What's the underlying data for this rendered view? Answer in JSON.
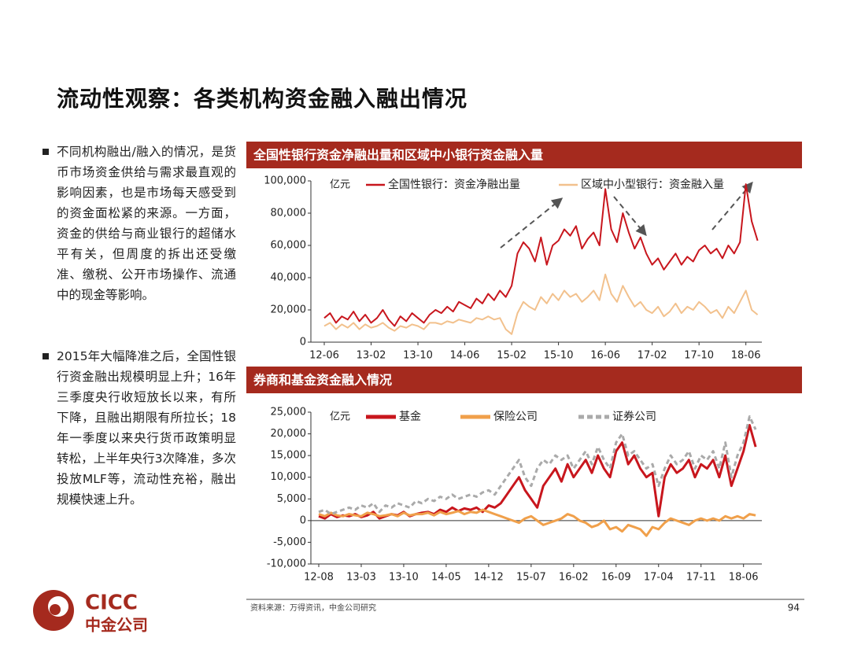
{
  "title": "流动性观察：各类机构资金融入融出情况",
  "bullets": [
    "不同机构融出/融入的情况，是货币市场资金供给与需求最直观的影响因素，也是市场每天感受到的资金面松紧的来源。一方面，资金的供给与商业银行的超储水平有关，但周度的拆出还受缴准、缴税、公开市场操作、流通中的现金等影响。",
    "2015年大幅降准之后，全国性银行资金融出规模明显上升；16年三季度央行收短放长以来，有所下降，且融出期限有所拉长；18年一季度以来央行货币政策明显转松，上半年央行3次降准，多次投放MLF等，流动性充裕，融出规模快速上升。"
  ],
  "chart_data": [
    {
      "type": "line",
      "title": "全国性银行资金净融出量和区域中小银行资金融入量",
      "y_unit": "亿元",
      "categories": [
        "12-06",
        null,
        null,
        null,
        null,
        null,
        null,
        null,
        "13-02",
        null,
        null,
        null,
        null,
        null,
        null,
        null,
        "13-10",
        null,
        null,
        null,
        null,
        null,
        null,
        null,
        "14-06",
        null,
        null,
        null,
        null,
        null,
        null,
        null,
        "15-02",
        null,
        null,
        null,
        null,
        null,
        null,
        null,
        "15-10",
        null,
        null,
        null,
        null,
        null,
        null,
        null,
        "16-06",
        null,
        null,
        null,
        null,
        null,
        null,
        null,
        "17-02",
        null,
        null,
        null,
        null,
        null,
        null,
        null,
        "17-10",
        null,
        null,
        null,
        null,
        null,
        null,
        null,
        "18-06",
        null,
        null
      ],
      "series": [
        {
          "name": "全国性银行：资金净融出量",
          "color": "#c8161d",
          "line_style": "solid",
          "values": [
            15000,
            18000,
            12000,
            16000,
            14000,
            19000,
            13000,
            17000,
            12000,
            15000,
            20000,
            14000,
            10000,
            16000,
            13000,
            18000,
            15000,
            12000,
            17000,
            20000,
            18000,
            22000,
            19000,
            25000,
            23000,
            21000,
            27000,
            24000,
            30000,
            26000,
            32000,
            28000,
            35000,
            55000,
            62000,
            58000,
            50000,
            65000,
            48000,
            60000,
            63000,
            70000,
            66000,
            72000,
            58000,
            64000,
            68000,
            60000,
            95000,
            70000,
            62000,
            80000,
            68000,
            58000,
            65000,
            55000,
            48000,
            52000,
            45000,
            50000,
            55000,
            48000,
            53000,
            50000,
            57000,
            60000,
            55000,
            58000,
            52000,
            60000,
            55000,
            62000,
            98000,
            75000,
            63000
          ]
        },
        {
          "name": "区域中小型银行：资金融入量",
          "color": "#f2c18d",
          "line_style": "solid",
          "values": [
            10000,
            12000,
            8000,
            11000,
            9000,
            12000,
            8000,
            11000,
            9000,
            10000,
            12000,
            9000,
            7000,
            10000,
            9000,
            11000,
            10000,
            8000,
            12000,
            12000,
            11000,
            13000,
            12000,
            14000,
            13000,
            12000,
            15000,
            14000,
            16000,
            14000,
            15000,
            8000,
            5000,
            18000,
            25000,
            22000,
            20000,
            28000,
            24000,
            30000,
            26000,
            32000,
            28000,
            30000,
            25000,
            28000,
            32000,
            26000,
            42000,
            30000,
            25000,
            35000,
            28000,
            22000,
            25000,
            20000,
            18000,
            22000,
            16000,
            19000,
            24000,
            18000,
            22000,
            20000,
            25000,
            22000,
            18000,
            20000,
            15000,
            22000,
            18000,
            25000,
            32000,
            20000,
            17000
          ]
        }
      ],
      "ylim": [
        0,
        100000
      ],
      "yticks": [
        0,
        {
          "value": 20000,
          "label": "20,000"
        },
        {
          "value": 40000,
          "label": "40,000"
        },
        {
          "value": 60000,
          "label": "60,000"
        },
        {
          "value": 80000,
          "label": "80,000"
        },
        {
          "value": 100000,
          "label": "100,000"
        }
      ]
    },
    {
      "type": "line",
      "title": "券商和基金资金融入情况",
      "y_unit": "亿元",
      "categories": [
        "12-08",
        null,
        null,
        null,
        null,
        null,
        null,
        "13-03",
        null,
        null,
        null,
        null,
        null,
        null,
        "13-10",
        null,
        null,
        null,
        null,
        null,
        null,
        "14-05",
        null,
        null,
        null,
        null,
        null,
        null,
        "14-12",
        null,
        null,
        null,
        null,
        null,
        null,
        "15-07",
        null,
        null,
        null,
        null,
        null,
        null,
        "16-02",
        null,
        null,
        null,
        null,
        null,
        null,
        "16-09",
        null,
        null,
        null,
        null,
        null,
        null,
        "17-04",
        null,
        null,
        null,
        null,
        null,
        null,
        "17-11",
        null,
        null,
        null,
        null,
        null,
        null,
        "18-06",
        null,
        null
      ],
      "series": [
        {
          "name": "基金",
          "color": "#c8161d",
          "line_style": "solid",
          "values": [
            1000,
            500,
            1500,
            800,
            1200,
            1000,
            1500,
            800,
            1200,
            2000,
            500,
            1000,
            1500,
            1200,
            2000,
            1000,
            1500,
            1800,
            2000,
            1500,
            2500,
            2000,
            3000,
            2200,
            2800,
            2500,
            3000,
            2000,
            3500,
            3000,
            4000,
            6000,
            8000,
            10000,
            7000,
            5000,
            3000,
            8000,
            10000,
            12000,
            9000,
            13000,
            10000,
            12000,
            14000,
            11000,
            15000,
            12000,
            10000,
            16000,
            18000,
            13000,
            15000,
            12000,
            10000,
            11000,
            1000,
            10000,
            13000,
            11000,
            12000,
            14000,
            10000,
            13000,
            12000,
            14000,
            10000,
            15000,
            8000,
            12000,
            16000,
            22000,
            17000
          ]
        },
        {
          "name": "保险公司",
          "color": "#f0a04b",
          "line_style": "solid",
          "values": [
            1500,
            1000,
            1800,
            1200,
            1000,
            1500,
            1200,
            1000,
            1800,
            1500,
            1000,
            1200,
            1500,
            1000,
            1800,
            1200,
            1500,
            1500,
            1800,
            1200,
            2000,
            1500,
            1800,
            2200,
            1500,
            2000,
            1800,
            2500,
            2000,
            1500,
            1000,
            500,
            0,
            -500,
            500,
            1000,
            0,
            -1000,
            -500,
            0,
            500,
            1500,
            1000,
            0,
            -500,
            -1500,
            -1000,
            0,
            -2000,
            -1500,
            -2500,
            -1000,
            -1500,
            -2000,
            -3500,
            -1500,
            -2000,
            -500,
            500,
            0,
            -500,
            -1000,
            0,
            500,
            0,
            500,
            0,
            1000,
            500,
            1000,
            500,
            1500,
            1200
          ]
        },
        {
          "name": "证券公司",
          "color": "#aaaaaa",
          "line_style": "dashed",
          "values": [
            2000,
            2500,
            1500,
            2000,
            2500,
            3000,
            2500,
            3500,
            3000,
            4000,
            2000,
            3500,
            3000,
            4000,
            3500,
            3000,
            4500,
            4000,
            5000,
            4500,
            5500,
            5000,
            6000,
            5000,
            5500,
            6000,
            5500,
            6500,
            7000,
            6000,
            8000,
            10000,
            12000,
            14000,
            10000,
            8000,
            12000,
            14000,
            13000,
            15000,
            14000,
            15000,
            12000,
            14000,
            16000,
            13000,
            17000,
            14000,
            12000,
            18000,
            20000,
            15000,
            16000,
            14000,
            12000,
            13000,
            8000,
            12000,
            15000,
            13000,
            14000,
            16000,
            12000,
            15000,
            14000,
            16000,
            12000,
            18000,
            10000,
            15000,
            18000,
            24000,
            21000
          ]
        }
      ],
      "ylim": [
        -10000,
        25000
      ],
      "yticks": [
        {
          "value": -10000,
          "label": "-10,000"
        },
        {
          "value": -5000,
          "label": "-5,000"
        },
        0,
        {
          "value": 5000,
          "label": "5,000"
        },
        {
          "value": 10000,
          "label": "10,000"
        },
        {
          "value": 15000,
          "label": "15,000"
        },
        {
          "value": 20000,
          "label": "20,000"
        },
        {
          "value": 25000,
          "label": "25,000"
        }
      ]
    }
  ],
  "source": "资料来源：万得资讯，中金公司研究",
  "page_number": "94",
  "logo": {
    "name": "CICC",
    "name_cn": "中金公司"
  }
}
